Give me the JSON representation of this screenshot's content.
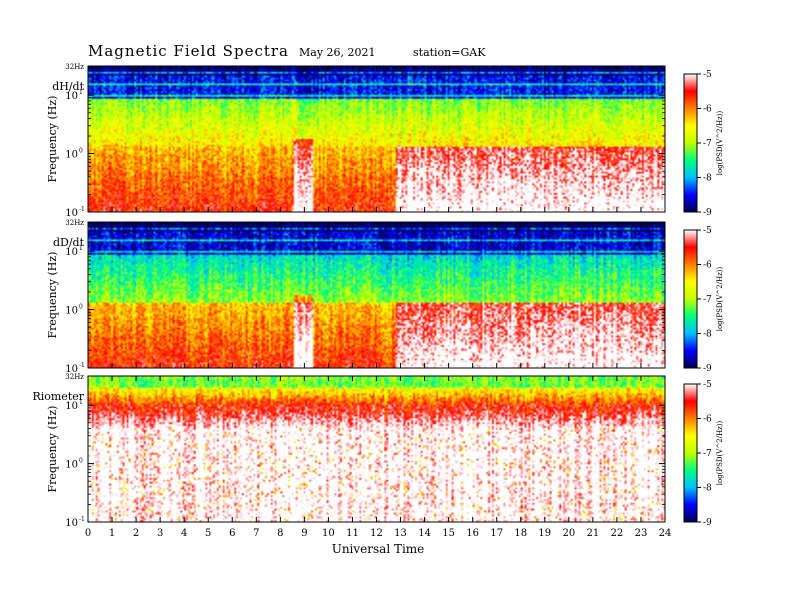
{
  "header": {
    "title": "Magnetic Field Spectra",
    "date": "May 26, 2021",
    "station": "station=GAK"
  },
  "chart_data": {
    "type": "heatmap",
    "xlabel": "Universal Time",
    "x_ticks": [
      "0",
      "1",
      "2",
      "3",
      "4",
      "5",
      "6",
      "7",
      "8",
      "9",
      "10",
      "11",
      "12",
      "13",
      "14",
      "15",
      "16",
      "17",
      "18",
      "19",
      "20",
      "21",
      "22",
      "23",
      "24"
    ],
    "xlim": [
      0,
      24
    ],
    "ylabel": "Frequency (Hz)",
    "y_scale": "log",
    "colorbar": {
      "ticks": [
        "-5",
        "-6",
        "-7",
        "-8",
        "-9"
      ],
      "range": [
        -9,
        -5
      ],
      "label": "log(PSD(V^2/Hz))",
      "colormap": [
        "#000050",
        "#0000ff",
        "#00bfff",
        "#00ff80",
        "#c0ff00",
        "#ffff00",
        "#ff8000",
        "#ff0000",
        "#ffffff"
      ]
    },
    "panels": [
      {
        "name": "dH/dt",
        "top_label": "32Hz",
        "y_ticks": [
          {
            "base": "10",
            "exp": "1"
          },
          {
            "base": "10",
            "exp": "0"
          },
          {
            "base": "10",
            "exp": "-1"
          }
        ],
        "description_levels": {
          "high_freq_background": -8.5,
          "mid_freq": -7.2,
          "low_freq": -6.0,
          "activity_start_ut": 12.8
        }
      },
      {
        "name": "dD/dt",
        "top_label": "32Hz",
        "y_ticks": [
          {
            "base": "10",
            "exp": "1"
          },
          {
            "base": "10",
            "exp": "0"
          },
          {
            "base": "10",
            "exp": "-1"
          }
        ],
        "description_levels": {
          "high_freq_background": -8.6,
          "mid_freq": -7.8,
          "low_freq": -6.0,
          "activity_start_ut": 12.8
        }
      },
      {
        "name": "Riometer",
        "top_label": "32Hz",
        "y_ticks": [
          {
            "base": "10",
            "exp": "1"
          },
          {
            "base": "10",
            "exp": "0"
          },
          {
            "base": "10",
            "exp": "-1"
          }
        ],
        "description_levels": {
          "high_freq_background": -6.8,
          "mid_freq": -5.5,
          "low_freq": -5.0,
          "activity_start_ut": 0
        }
      }
    ]
  }
}
